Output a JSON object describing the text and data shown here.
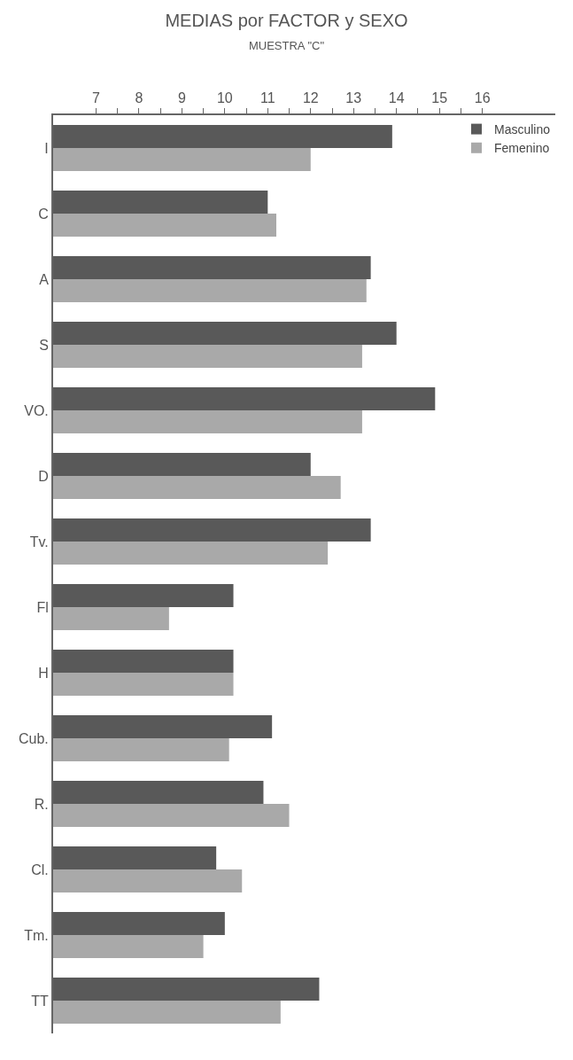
{
  "chart_data": {
    "type": "bar",
    "orientation": "horizontal",
    "title": "MEDIAS por FACTOR y SEXO",
    "subtitle": "MUESTRA \"C\"",
    "categories": [
      "I",
      "C",
      "A",
      "S",
      "VO.",
      "D",
      "Tv.",
      "Fl",
      "H",
      "Cub.",
      "R.",
      "Cl.",
      "Tm.",
      "TT"
    ],
    "series": [
      {
        "name": "Masculino",
        "color": "#595959",
        "values": [
          13.9,
          11.0,
          13.4,
          14.0,
          14.9,
          12.0,
          13.4,
          10.2,
          10.2,
          11.1,
          10.9,
          9.8,
          10.0,
          12.2
        ]
      },
      {
        "name": "Femenino",
        "color": "#a9a9a9",
        "values": [
          12.0,
          11.2,
          13.3,
          13.2,
          13.2,
          12.7,
          12.4,
          8.7,
          10.2,
          10.1,
          11.5,
          10.4,
          9.5,
          11.3
        ]
      }
    ],
    "xlim": [
      6.0,
      17.7
    ],
    "xticks": [
      7,
      {
        "value": 7.5,
        "label": null
      },
      8,
      {
        "value": 8.5,
        "label": null
      },
      9,
      {
        "value": 9.5,
        "label": null
      },
      10,
      {
        "value": 10.5,
        "label": null
      },
      11,
      {
        "value": 11.5,
        "label": null
      },
      12,
      {
        "value": 12.5,
        "label": null
      },
      13,
      {
        "value": 13.5,
        "label": null
      },
      14,
      {
        "value": 14.5,
        "label": null
      },
      15,
      {
        "value": 15.5,
        "label": null
      },
      16
    ],
    "grid": false,
    "legend": "top right"
  }
}
